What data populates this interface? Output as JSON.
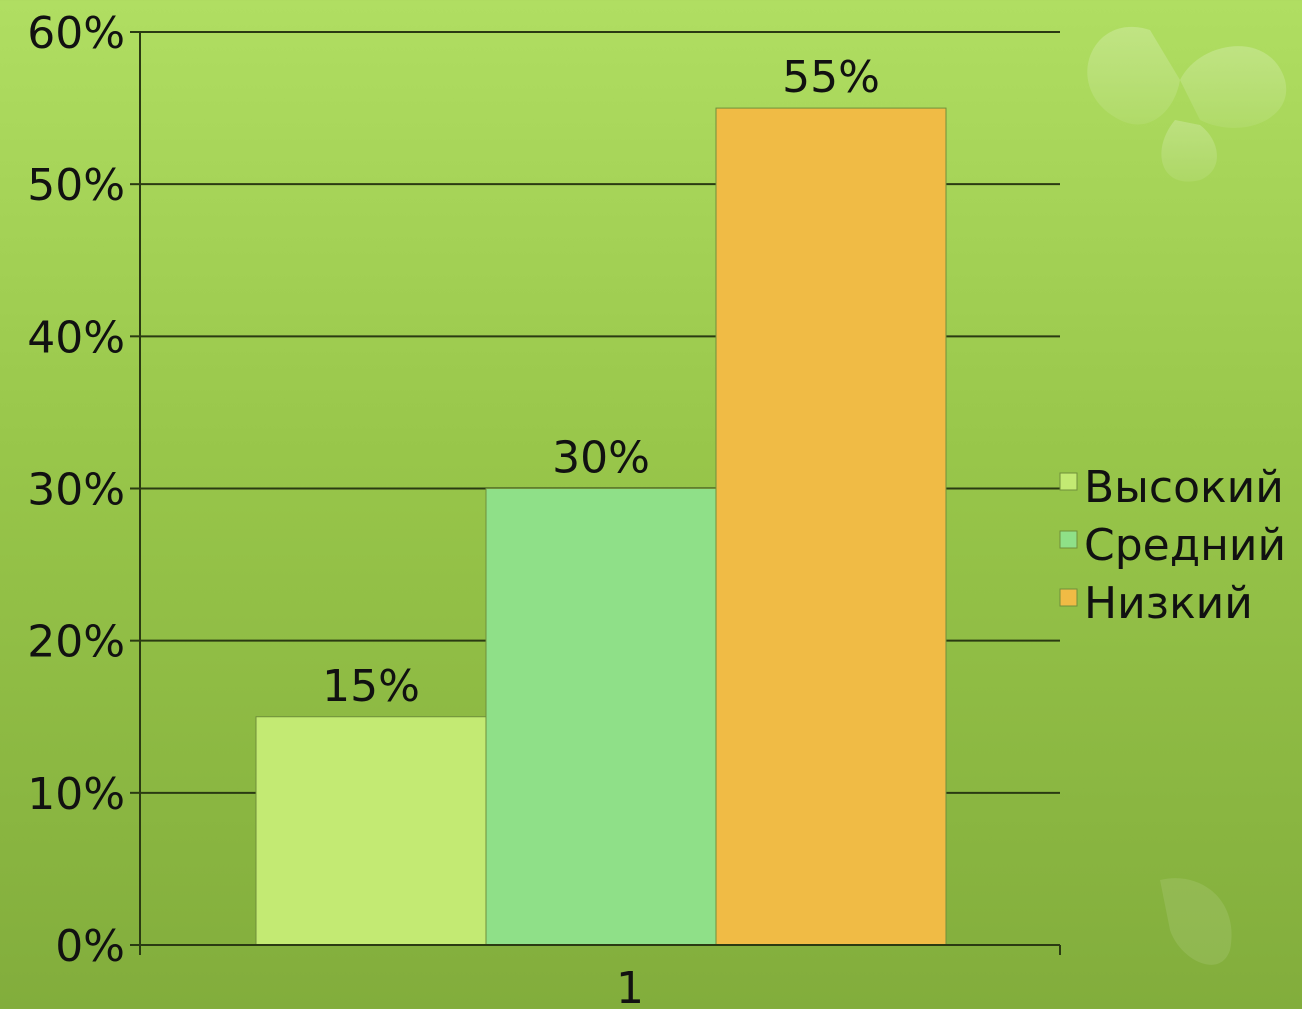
{
  "chart_data": {
    "type": "bar",
    "title": "",
    "xlabel": "",
    "ylabel": "",
    "categories": [
      "1"
    ],
    "series": [
      {
        "name": "Высокий",
        "values": [
          0.15
        ],
        "label": "15%",
        "color": "#c3ea73"
      },
      {
        "name": "Средний",
        "values": [
          0.3
        ],
        "label": "30%",
        "color": "#8fe088"
      },
      {
        "name": "Низкий",
        "values": [
          0.55
        ],
        "label": "55%",
        "color": "#f0bb45"
      }
    ],
    "ylim": [
      0,
      0.6
    ],
    "yticks": [
      {
        "value": 0.0,
        "label": "0%"
      },
      {
        "value": 0.1,
        "label": "10%"
      },
      {
        "value": 0.2,
        "label": "20%"
      },
      {
        "value": 0.3,
        "label": "30%"
      },
      {
        "value": 0.4,
        "label": "40%"
      },
      {
        "value": 0.5,
        "label": "50%"
      },
      {
        "value": 0.6,
        "label": "60%"
      }
    ],
    "grid": true,
    "legend_position": "right"
  },
  "colors": {
    "background_top": "#b0de62",
    "background_bottom": "#82ad3c",
    "gridline": "#2a3a12",
    "text": "#111111"
  }
}
